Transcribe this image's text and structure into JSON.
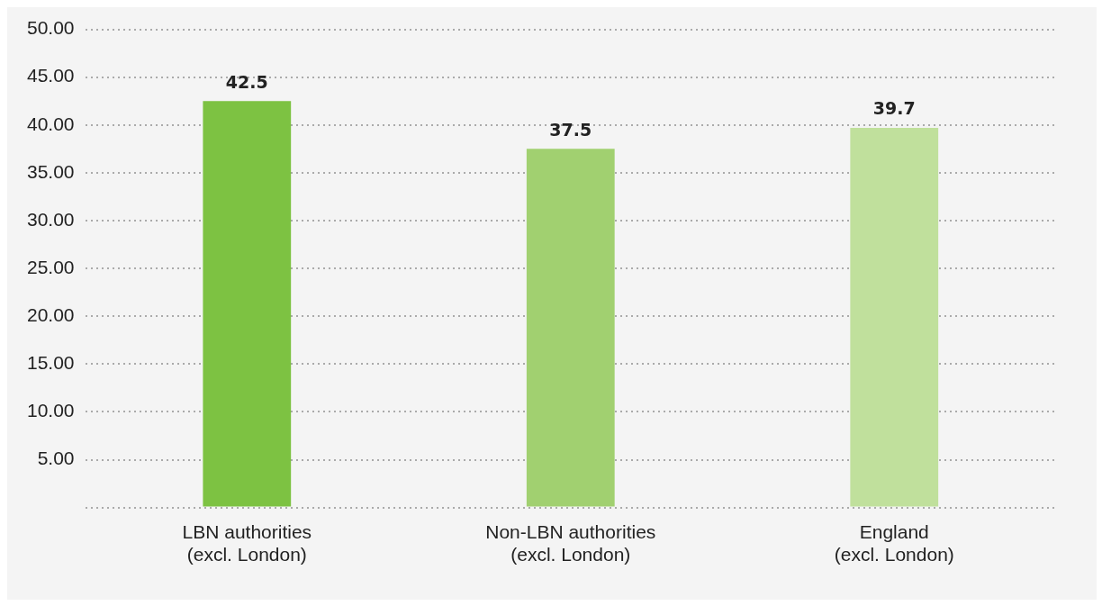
{
  "chart_data": {
    "type": "bar",
    "categories": [
      "LBN authorities\n(excl. London)",
      "Non-LBN authorities\n(excl. London)",
      "England\n(excl. London)"
    ],
    "values": [
      42.5,
      37.5,
      39.7
    ],
    "colors": [
      "#7dc242",
      "#a1d070",
      "#c0e09c"
    ],
    "ylim": [
      0,
      50
    ],
    "yticks": [
      {
        "value": 0,
        "label": null
      },
      {
        "value": 5,
        "label": "5.00"
      },
      {
        "value": 10,
        "label": "10.00"
      },
      {
        "value": 15,
        "label": "15.00"
      },
      {
        "value": 20,
        "label": "20.00"
      },
      {
        "value": 25,
        "label": "25.00"
      },
      {
        "value": 30,
        "label": "30.00"
      },
      {
        "value": 35,
        "label": "35.00"
      },
      {
        "value": 40,
        "label": "40.00"
      },
      {
        "value": 45,
        "label": "45.00"
      },
      {
        "value": 50,
        "label": "50.00"
      }
    ],
    "grid": "y",
    "data_labels": true
  }
}
